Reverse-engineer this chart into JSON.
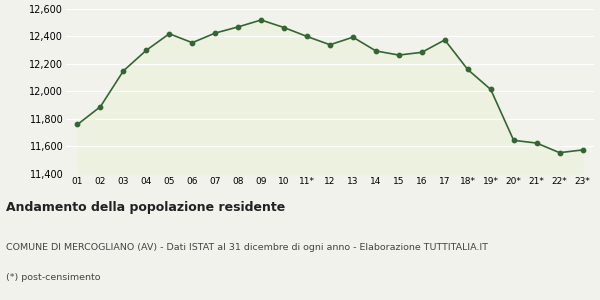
{
  "x_labels": [
    "01",
    "02",
    "03",
    "04",
    "05",
    "06",
    "07",
    "08",
    "09",
    "10",
    "11*",
    "12",
    "13",
    "14",
    "15",
    "16",
    "17",
    "18*",
    "19*",
    "20*",
    "21*",
    "22*",
    "23*"
  ],
  "y_values": [
    11760,
    11890,
    12150,
    12300,
    12420,
    12355,
    12425,
    12470,
    12520,
    12465,
    12400,
    12340,
    12395,
    12295,
    12265,
    12285,
    12375,
    12160,
    12015,
    11645,
    11625,
    11555,
    11575
  ],
  "line_color": "#336633",
  "fill_color": "#edf2e0",
  "marker_color": "#336633",
  "background_color": "#f2f2ed",
  "grid_color": "#ffffff",
  "ylim": [
    11400,
    12600
  ],
  "yticks": [
    11400,
    11600,
    11800,
    12000,
    12200,
    12400,
    12600
  ],
  "title": "Andamento della popolazione residente",
  "subtitle": "COMUNE DI MERCOGLIANO (AV) - Dati ISTAT al 31 dicembre di ogni anno - Elaborazione TUTTITALIA.IT",
  "footnote": "(*) post-censimento",
  "title_fontsize": 9,
  "subtitle_fontsize": 6.8,
  "footnote_fontsize": 6.8
}
